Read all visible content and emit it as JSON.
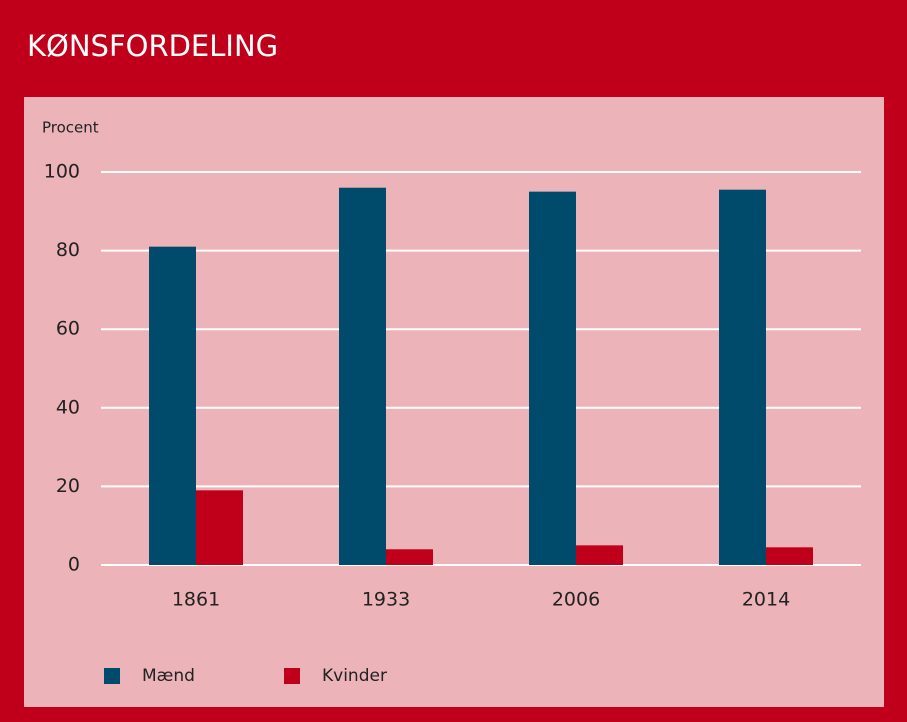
{
  "chart_data": {
    "type": "bar",
    "title": "KØNSFORDELING",
    "y_label": "Procent",
    "categories": [
      "1861",
      "1933",
      "2006",
      "2014"
    ],
    "series": [
      {
        "name": "Mænd",
        "color": "#004a6b",
        "values": [
          81,
          96,
          95,
          95.5
        ]
      },
      {
        "name": "Kvinder",
        "color": "#c0001a",
        "values": [
          19,
          4,
          5,
          4.5
        ]
      }
    ],
    "ylim": [
      0,
      100
    ],
    "yticks": [
      0,
      20,
      40,
      60,
      80,
      100
    ],
    "grid": true
  }
}
